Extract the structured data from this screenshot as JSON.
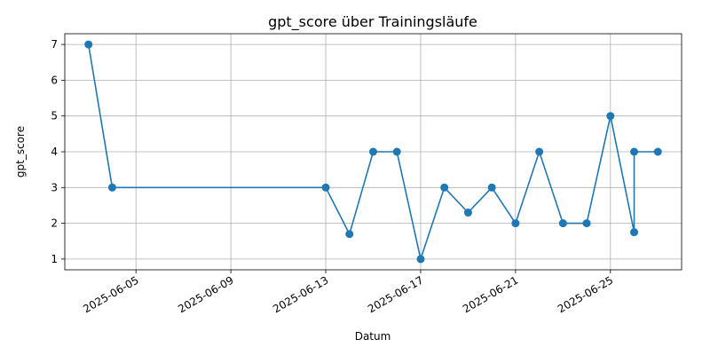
{
  "chart_data": {
    "type": "line",
    "title": "gpt_score über Trainingsläufe",
    "xlabel": "Datum",
    "ylabel": "gpt_score",
    "x_type": "date",
    "xlim": [
      "2025-06-02",
      "2025-06-28"
    ],
    "ylim": [
      0.7,
      7.3
    ],
    "x_ticks": [
      "2025-06-05",
      "2025-06-09",
      "2025-06-13",
      "2025-06-17",
      "2025-06-21",
      "2025-06-25"
    ],
    "y_ticks": [
      1,
      2,
      3,
      4,
      5,
      6,
      7
    ],
    "grid": true,
    "color": "#1f77b4",
    "series": [
      {
        "points": [
          {
            "x": "2025-06-03",
            "y": 7
          },
          {
            "x": "2025-06-04",
            "y": 3
          },
          {
            "x": "2025-06-13",
            "y": 3
          },
          {
            "x": "2025-06-14",
            "y": 1.7
          },
          {
            "x": "2025-06-15",
            "y": 4
          },
          {
            "x": "2025-06-16",
            "y": 4
          },
          {
            "x": "2025-06-17",
            "y": 1
          },
          {
            "x": "2025-06-18",
            "y": 3
          },
          {
            "x": "2025-06-19",
            "y": 2.3
          },
          {
            "x": "2025-06-20",
            "y": 3
          },
          {
            "x": "2025-06-21",
            "y": 2
          },
          {
            "x": "2025-06-22",
            "y": 4
          },
          {
            "x": "2025-06-23",
            "y": 2
          },
          {
            "x": "2025-06-24",
            "y": 2
          },
          {
            "x": "2025-06-25",
            "y": 5
          },
          {
            "x": "2025-06-26",
            "y": 1.75
          },
          {
            "x": "2025-06-26",
            "y": 4
          },
          {
            "x": "2025-06-27",
            "y": 4
          }
        ]
      }
    ]
  }
}
